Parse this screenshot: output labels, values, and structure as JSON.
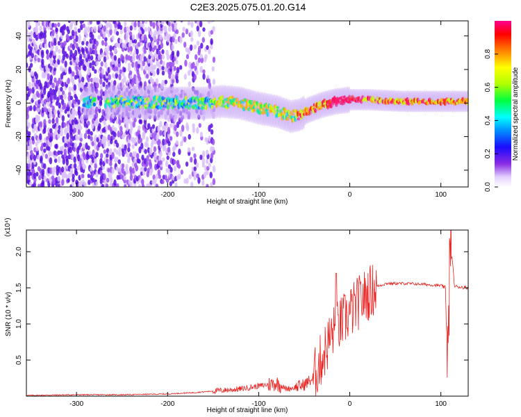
{
  "title": "C2E3.2025.075.01.20.G14",
  "chart_data": [
    {
      "type": "heatmap",
      "xlabel": "Height of straight line (km)",
      "ylabel": "Frequency (Hz)",
      "xlim": [
        -355,
        130
      ],
      "ylim": [
        -50,
        49
      ],
      "xticks": [
        -300,
        -200,
        -100,
        0,
        100
      ],
      "xtick_labels": [
        "-300",
        "-200",
        "-100",
        "0",
        "100"
      ],
      "yticks": [
        -40,
        -20,
        0,
        20,
        40
      ],
      "ytick_labels": [
        "-40",
        "-20",
        "0",
        "20",
        "40"
      ],
      "colorbar": {
        "label": "Normalized spectral amplitude",
        "range": [
          0,
          1
        ],
        "ticks": [
          0.0,
          0.2,
          0.4,
          0.6,
          0.8
        ],
        "tick_labels": [
          "0.0",
          "0.2",
          "0.4",
          "0.6",
          "0.8"
        ],
        "colormap": "rainbow (white-purple-blue-cyan-green-yellow-red-magenta)"
      },
      "ridge": {
        "x": [
          -290,
          -260,
          -200,
          -160,
          -140,
          -120,
          -100,
          -80,
          -65,
          -55,
          -45,
          -30,
          -15,
          0,
          20,
          60,
          100,
          130
        ],
        "freq": [
          0,
          1,
          0,
          0,
          1,
          0,
          -3,
          -5,
          -8,
          -7,
          -4,
          -1,
          1,
          2,
          2,
          1,
          1,
          1
        ]
      },
      "grid": false
    },
    {
      "type": "line",
      "xlabel": "Height of straight line (km)",
      "ylabel": "SNR (10 * v/v)",
      "y_multiplier": "(x10⁴)",
      "xlim": [
        -355,
        130
      ],
      "ylim": [
        0,
        2.3
      ],
      "xticks": [
        -300,
        -200,
        -100,
        0,
        100
      ],
      "xtick_labels": [
        "-300",
        "-200",
        "-100",
        "0",
        "100"
      ],
      "yticks": [
        0.5,
        1.0,
        1.5,
        2.0
      ],
      "ytick_labels": [
        "0.5",
        "1.0",
        "1.5",
        "2.0"
      ],
      "color": "#e8211f",
      "series": [
        {
          "x": [
            -355,
            -300,
            -250,
            -200,
            -170,
            -150,
            -120,
            -100,
            -80,
            -70,
            -60,
            -50,
            -40,
            -30,
            -20,
            -10,
            0,
            10,
            20,
            30,
            40,
            60,
            80,
            100,
            105,
            108,
            110,
            115,
            130
          ],
          "y": [
            0.01,
            0.02,
            0.02,
            0.03,
            0.05,
            0.07,
            0.1,
            0.14,
            0.18,
            0.1,
            0.12,
            0.16,
            0.25,
            0.55,
            0.85,
            1.0,
            1.15,
            1.3,
            1.42,
            1.52,
            1.56,
            1.56,
            1.55,
            1.53,
            1.5,
            0.4,
            2.25,
            1.52,
            1.5
          ]
        }
      ],
      "spike": {
        "x": -15,
        "y": 1.7
      },
      "grid": false
    }
  ]
}
